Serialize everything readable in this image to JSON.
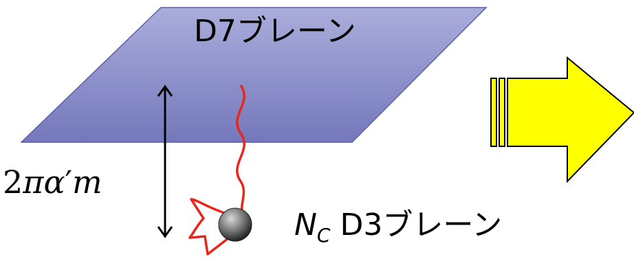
{
  "d7_brane": {
    "label": "D7ブレーン",
    "fill": "#8386c2",
    "edge": "#5a5ea8"
  },
  "separation": {
    "num": "2",
    "greek": "πα",
    "prime": "′",
    "var": "m"
  },
  "d3_brane": {
    "nc_main": "N",
    "nc_sub": "C",
    "label": "D3ブレーン"
  },
  "string_color": "#e8261b",
  "arrow": {
    "fill": "#ffff00",
    "stroke": "#000000"
  }
}
